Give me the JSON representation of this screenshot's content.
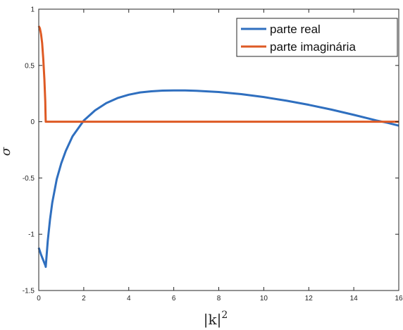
{
  "chart_data": {
    "type": "line",
    "title": "",
    "xlabel_base": "|k|",
    "xlabel_sup": "2",
    "ylabel": "σ",
    "xlim": [
      0,
      16
    ],
    "ylim": [
      -1.5,
      1
    ],
    "xticks": [
      0,
      2,
      4,
      6,
      8,
      10,
      12,
      14,
      16
    ],
    "yticks": [
      -1.5,
      -1,
      -0.5,
      0,
      0.5,
      1
    ],
    "ytick_labels": [
      "-1.5",
      "-1",
      "-0.5",
      "0",
      "0.5",
      "1"
    ],
    "grid": false,
    "legend_position": "top-right",
    "series": [
      {
        "name": "parte real",
        "color": "#2f6fbf",
        "x": [
          0.0,
          0.1,
          0.2,
          0.3,
          0.31,
          0.4,
          0.5,
          0.6,
          0.8,
          1.0,
          1.2,
          1.5,
          2.0,
          2.5,
          3.0,
          3.5,
          4.0,
          4.5,
          5.0,
          5.5,
          6.0,
          6.5,
          7.0,
          8.0,
          9.0,
          10.0,
          11.0,
          12.0,
          13.0,
          14.0,
          15.0,
          15.5,
          16.0
        ],
        "y": [
          -1.12,
          -1.18,
          -1.23,
          -1.28,
          -1.29,
          -1.06,
          -0.87,
          -0.72,
          -0.51,
          -0.37,
          -0.26,
          -0.13,
          0.01,
          0.1,
          0.165,
          0.21,
          0.24,
          0.26,
          0.27,
          0.276,
          0.278,
          0.278,
          0.275,
          0.264,
          0.245,
          0.219,
          0.187,
          0.15,
          0.108,
          0.061,
          0.011,
          -0.01,
          -0.035
        ]
      },
      {
        "name": "parte imaginária",
        "color": "#de5a24",
        "x": [
          0.0,
          0.05,
          0.1,
          0.15,
          0.2,
          0.25,
          0.29,
          0.3,
          0.31,
          1.0,
          4.0,
          8.0,
          12.0,
          16.0
        ],
        "y": [
          0.85,
          0.83,
          0.78,
          0.7,
          0.56,
          0.38,
          0.18,
          0.08,
          0.0,
          0.0,
          0.0,
          0.0,
          0.0,
          0.0
        ]
      }
    ]
  }
}
